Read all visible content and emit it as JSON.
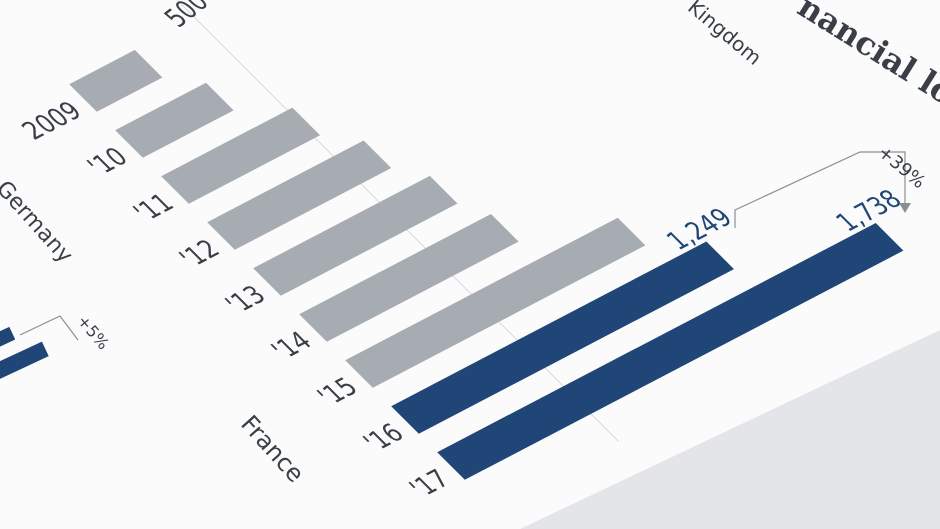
{
  "chart_data": {
    "type": "bar",
    "orientation": "horizontal",
    "title": "nancial lo",
    "subtitle": "Kingdom",
    "categories": [
      "2009",
      "'10",
      "'11",
      "'12",
      "'13",
      "'14",
      "'15",
      "'16",
      "'17"
    ],
    "values": [
      260,
      360,
      520,
      620,
      700,
      760,
      1080,
      1249,
      1738
    ],
    "value_labels": [
      null,
      null,
      null,
      null,
      null,
      null,
      null,
      "1,249",
      "1,738"
    ],
    "colors": [
      "#a7abb2",
      "#a7abb2",
      "#a7abb2",
      "#a7abb2",
      "#a7abb2",
      "#a7abb2",
      "#a7abb2",
      "#1f4677",
      "#1f4677"
    ],
    "xlim": [
      0,
      2000
    ],
    "xticks": [
      500
    ],
    "grid": true,
    "annotations": [
      "+39%",
      "+5%"
    ],
    "panel_labels": [
      "Germany",
      "France"
    ]
  }
}
